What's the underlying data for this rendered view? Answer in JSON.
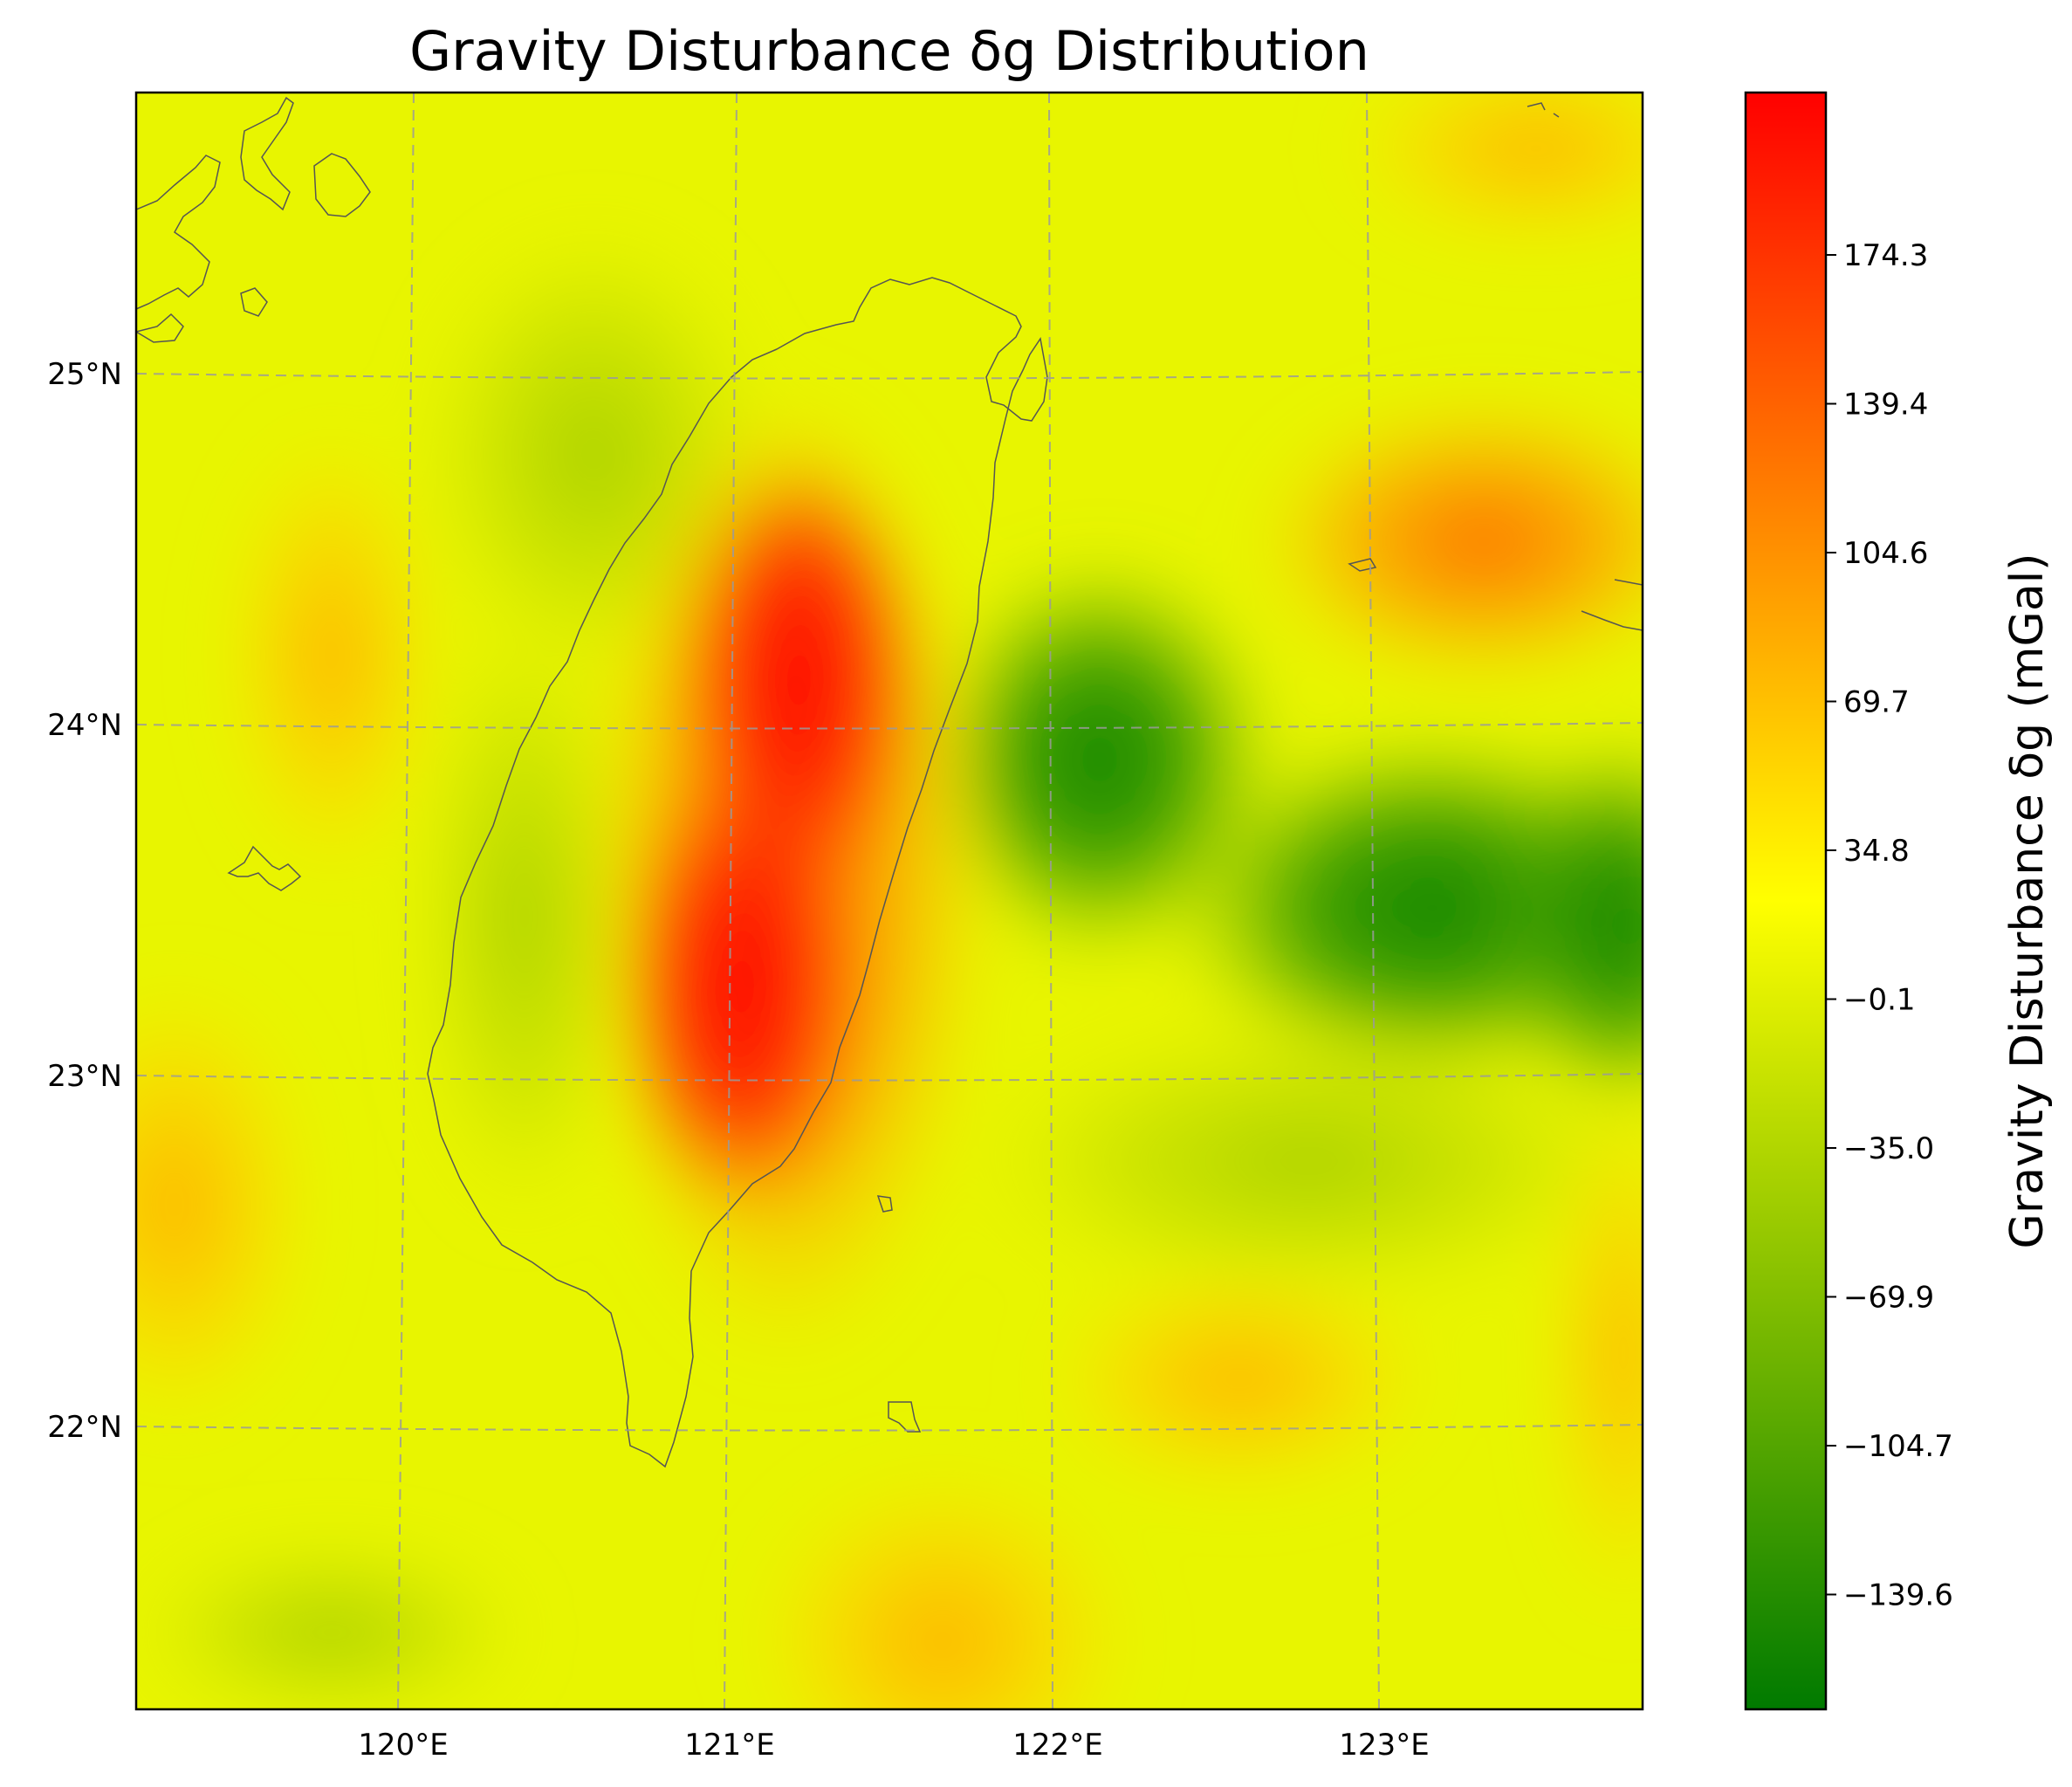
{
  "title": "Gravity Disturbance δg Distribution",
  "colorbar": {
    "label": "Gravity Disturbance δg (mGal)",
    "ticks": [
      "174.3",
      "139.4",
      "104.6",
      "69.7",
      "34.8",
      "−0.1",
      "−35.0",
      "−69.9",
      "−104.7",
      "−139.6"
    ],
    "colors": [
      "#007a00",
      "#ffff00",
      "#ff0000"
    ]
  },
  "lon_labels": [
    "120°E",
    "121°E",
    "122°E",
    "123°E"
  ],
  "lat_labels": [
    "25°N",
    "24°N",
    "23°N",
    "22°N"
  ],
  "colors": {
    "grid": "#9a9a9a",
    "coastline": "#555555"
  }
}
